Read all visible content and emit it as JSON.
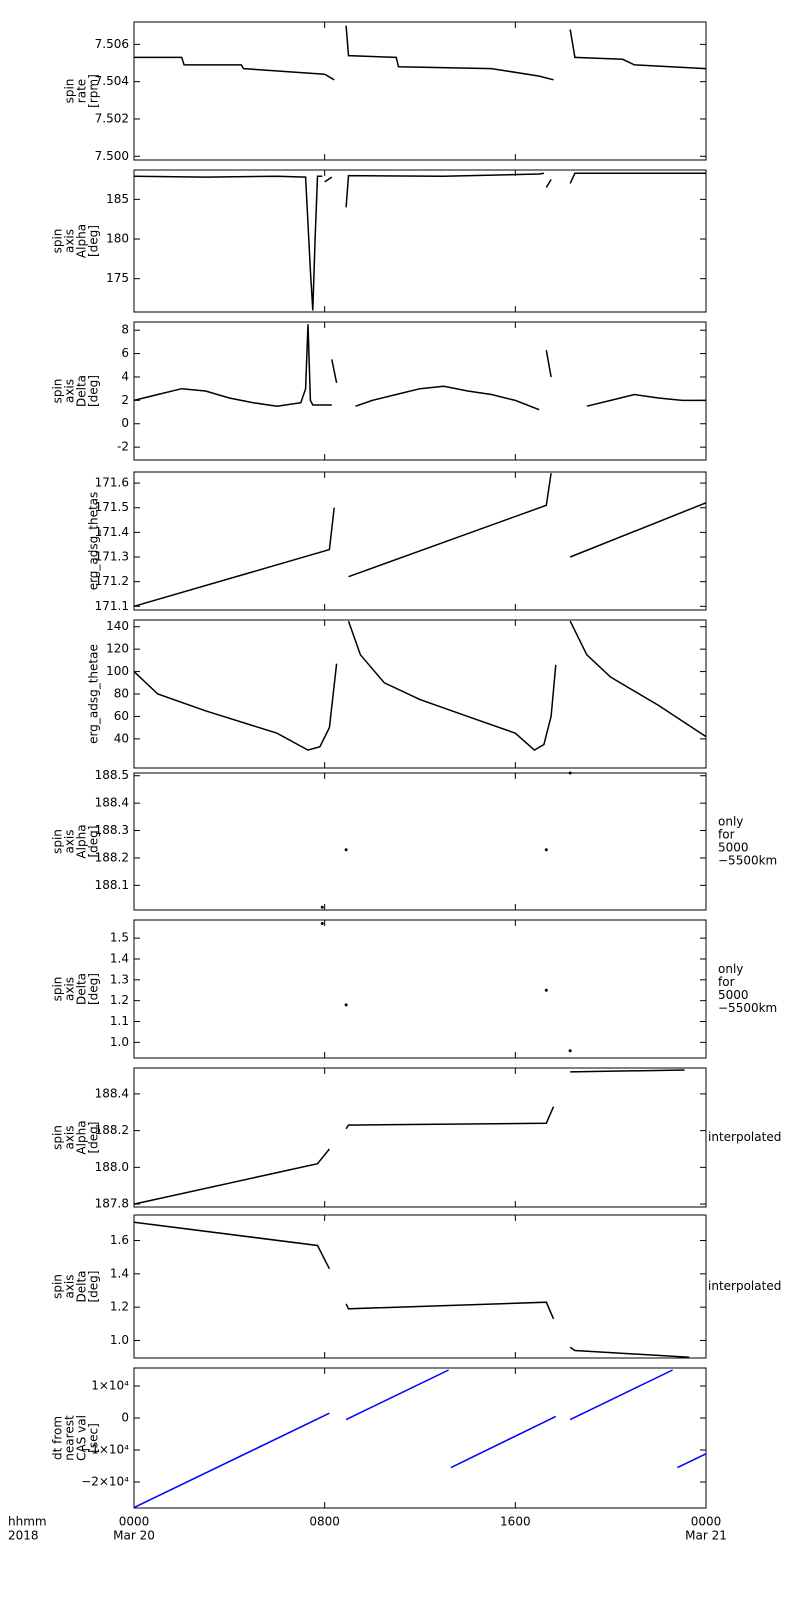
{
  "chart_data": [
    {
      "type": "line",
      "ylabel": [
        "spin",
        "rate",
        "[rpm]"
      ],
      "color": "#000000",
      "ylim": [
        7.4998,
        7.5072
      ],
      "yticks": [
        {
          "value": 7.5,
          "label": "7.500"
        },
        7.502,
        7.504,
        7.506
      ],
      "x": [
        0,
        2,
        2.1,
        4.5,
        4.6,
        8,
        8.4,
        null,
        8.9,
        9,
        11,
        11.1,
        15,
        17,
        17.6,
        null,
        18.3,
        18.5,
        20.5,
        21,
        24
      ],
      "values": [
        7.5053,
        7.5053,
        7.5049,
        7.5049,
        7.5047,
        7.5044,
        7.5041,
        null,
        7.507,
        7.5054,
        7.5053,
        7.5048,
        7.5047,
        7.5043,
        7.5041,
        null,
        7.5068,
        7.5053,
        7.5052,
        7.5049,
        7.5047
      ]
    },
    {
      "type": "line",
      "ylabel": [
        "spin",
        "axis",
        "Alpha",
        "[deg]"
      ],
      "color": "#000000",
      "ylim": [
        170.8,
        188.7
      ],
      "yticks": [
        175,
        180,
        185
      ],
      "x": [
        0,
        3,
        6,
        7.2,
        7.4,
        7.5,
        7.6,
        7.7,
        7.9,
        null,
        8.0,
        8.3,
        null,
        8.9,
        9,
        13,
        17,
        17.2,
        null,
        17.3,
        17.5,
        null,
        18.3,
        18.5,
        24
      ],
      "values": [
        187.9,
        187.8,
        187.9,
        187.8,
        176,
        171,
        180,
        187.9,
        187.9,
        null,
        187.2,
        187.8,
        null,
        184,
        188.0,
        187.9,
        188.2,
        188.3,
        null,
        186.5,
        187.5,
        null,
        187,
        188.3,
        188.3
      ]
    },
    {
      "type": "line",
      "ylabel": [
        "spin",
        "axis",
        "Delta",
        "[deg]"
      ],
      "color": "#000000",
      "ylim": [
        -3.1,
        8.7
      ],
      "yticks": [
        -2,
        0,
        2,
        4,
        6,
        8
      ],
      "x": [
        0,
        1,
        2,
        3,
        4,
        5,
        6,
        7,
        7.2,
        7.3,
        7.4,
        7.5,
        8.3,
        null,
        8.3,
        8.5,
        null,
        9.3,
        10,
        11,
        12,
        13,
        14,
        15,
        16,
        17,
        null,
        17.3,
        17.5,
        null,
        19,
        20,
        21,
        22,
        23,
        24
      ],
      "values": [
        2,
        2.5,
        3,
        2.8,
        2.2,
        1.8,
        1.5,
        1.8,
        3,
        8.5,
        2,
        1.6,
        1.6,
        null,
        5.5,
        3.5,
        null,
        1.5,
        2,
        2.5,
        3,
        3.2,
        2.8,
        2.5,
        2,
        1.2,
        null,
        6.3,
        4,
        null,
        1.5,
        2,
        2.5,
        2.2,
        2,
        2
      ]
    },
    {
      "type": "line",
      "ylabel": [
        "erg_adsg_thetas"
      ],
      "color": "#000000",
      "ylim": [
        171.085,
        171.645
      ],
      "yticks": [
        171.1,
        171.2,
        171.3,
        171.4,
        171.5,
        171.6
      ],
      "x": [
        0,
        8.2,
        8.4,
        null,
        9,
        17.3,
        17.5,
        null,
        18.3,
        24
      ],
      "values": [
        171.1,
        171.33,
        171.5,
        null,
        171.22,
        171.51,
        171.64,
        null,
        171.3,
        171.52
      ]
    },
    {
      "type": "line",
      "ylabel": [
        "erg_adsg_thetae"
      ],
      "color": "#000000",
      "ylim": [
        14,
        146
      ],
      "yticks": [
        40,
        60,
        80,
        100,
        120,
        140
      ],
      "x": [
        0,
        1,
        3,
        6,
        7.3,
        7.8,
        8.2,
        8.5,
        null,
        9,
        9.5,
        10.5,
        12,
        14,
        16,
        16.8,
        17.2,
        17.5,
        17.7,
        null,
        18.3,
        19,
        20,
        22,
        24
      ],
      "values": [
        100,
        80,
        65,
        45,
        30,
        33,
        50,
        107,
        null,
        145,
        115,
        90,
        75,
        60,
        45,
        30,
        35,
        60,
        106,
        null,
        145,
        115,
        95,
        70,
        42
      ]
    },
    {
      "type": "scatter",
      "ylabel": [
        "spin",
        "axis",
        "Alpha",
        "[deg]"
      ],
      "color": "#000000",
      "note": [
        "only",
        "for",
        "5000",
        "−5500km"
      ],
      "ylim": [
        188.01,
        188.51
      ],
      "yticks": [
        188.1,
        188.2,
        188.3,
        188.4,
        188.5
      ],
      "x": [
        7.9,
        8.9,
        17.3,
        18.3
      ],
      "values": [
        188.02,
        188.23,
        188.23,
        188.51
      ]
    },
    {
      "type": "scatter",
      "ylabel": [
        "spin",
        "axis",
        "Delta",
        "[deg]"
      ],
      "color": "#000000",
      "note": [
        "only",
        "for",
        "5000",
        "−5500km"
      ],
      "ylim": [
        0.925,
        1.587
      ],
      "yticks": [
        {
          "value": 1.0,
          "label": "1.0"
        },
        1.1,
        1.2,
        1.3,
        1.4,
        1.5
      ],
      "x": [
        7.9,
        8.9,
        17.3,
        18.3
      ],
      "values": [
        1.57,
        1.18,
        1.25,
        0.96
      ]
    },
    {
      "type": "line",
      "ylabel": [
        "spin",
        "axis",
        "Alpha",
        "[deg]"
      ],
      "color": "#000000",
      "note": [
        "interpolated"
      ],
      "ylim": [
        187.784,
        188.541
      ],
      "yticks": [
        187.8,
        {
          "value": 188.0,
          "label": "188.0"
        },
        188.2,
        188.4
      ],
      "x": [
        0,
        7.7,
        8.2,
        null,
        8.9,
        9,
        17.3,
        17.6,
        null,
        18.3,
        23.1
      ],
      "values": [
        187.8,
        188.02,
        188.1,
        null,
        188.21,
        188.23,
        188.24,
        188.33,
        null,
        188.52,
        188.53
      ]
    },
    {
      "type": "line",
      "ylabel": [
        "spin",
        "axis",
        "Delta",
        "[deg]"
      ],
      "color": "#000000",
      "note": [
        "interpolated"
      ],
      "ylim": [
        0.895,
        1.753
      ],
      "yticks": [
        {
          "value": 1.0,
          "label": "1.0"
        },
        1.2,
        1.4,
        1.6
      ],
      "x": [
        0,
        7.7,
        8.2,
        null,
        8.9,
        9,
        17.3,
        17.6,
        null,
        18.3,
        18.5,
        23.3
      ],
      "values": [
        1.71,
        1.57,
        1.43,
        null,
        1.22,
        1.19,
        1.23,
        1.13,
        null,
        0.96,
        0.94,
        0.9
      ]
    },
    {
      "type": "line",
      "ylabel": [
        "dt from",
        "nearest",
        "CAS val",
        "[sec]"
      ],
      "color": "#0000ff",
      "ylim": [
        -28125,
        15625
      ],
      "yticks": [
        {
          "value": -20000,
          "label": "−2×10⁴"
        },
        {
          "value": -10000,
          "label": "−1×10⁴"
        },
        0,
        {
          "value": 10000,
          "label": "1×10⁴"
        }
      ],
      "x": [
        0,
        8.2,
        null,
        8.9,
        13.2,
        null,
        13.3,
        17.7,
        null,
        18.3,
        22.6,
        null,
        22.8,
        24
      ],
      "values": [
        -28000,
        1500,
        null,
        -500,
        15000,
        null,
        -15500,
        500,
        null,
        -500,
        15000,
        null,
        -15500,
        -11200
      ],
      "xlim": [
        0,
        24
      ],
      "xticks": [
        {
          "value": 0,
          "label": "0000"
        },
        {
          "value": 8,
          "label": "0800"
        },
        {
          "value": 16,
          "label": "1600"
        },
        {
          "value": 24,
          "label": "0000"
        }
      ],
      "xdates": [
        {
          "value": 0,
          "label": "Mar 20"
        },
        {
          "value": 24,
          "label": "Mar 21"
        }
      ],
      "xlabel": [
        "hhmm",
        "2018"
      ]
    }
  ]
}
